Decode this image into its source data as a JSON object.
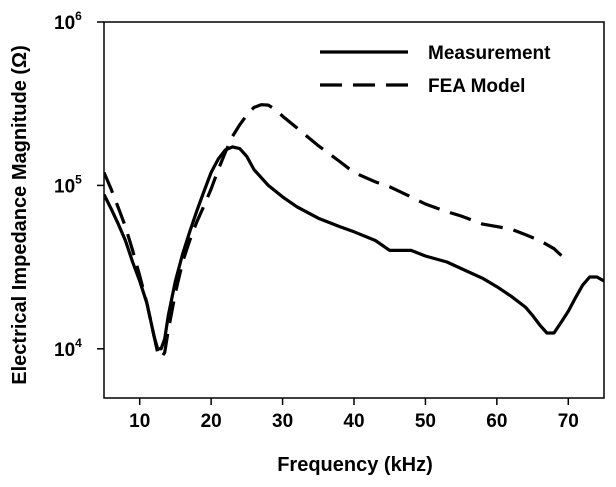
{
  "chart_data": {
    "type": "line",
    "title": "",
    "xlabel": "Frequency (kHz)",
    "ylabel": "Electrical Impedance Magnitude (Ω)",
    "x_scale": "linear",
    "y_scale": "log",
    "xlim": [
      5,
      75
    ],
    "ylim": [
      5000,
      1000000
    ],
    "x_ticks": [
      10,
      20,
      30,
      40,
      50,
      60,
      70
    ],
    "x_tick_labels": [
      "10",
      "20",
      "30",
      "40",
      "50",
      "60",
      "70"
    ],
    "y_ticks": [
      {
        "value": 10000,
        "base": "10",
        "exp": "4"
      },
      {
        "value": 100000,
        "base": "10",
        "exp": "5"
      },
      {
        "value": 1000000,
        "base": "10",
        "exp": "6"
      }
    ],
    "legend_position": "top-right",
    "grid": false,
    "series": [
      {
        "name": "Measurement",
        "style": "solid",
        "color": "#000000",
        "x": [
          5,
          6,
          7,
          8,
          9,
          10,
          11,
          12,
          12.5,
          13,
          13.5,
          14,
          15,
          16,
          17,
          18,
          19,
          20,
          21,
          22,
          23,
          24,
          25,
          26,
          28,
          30,
          32,
          35,
          38,
          40,
          43,
          45,
          48,
          50,
          53,
          55,
          58,
          60,
          62,
          64,
          65,
          66,
          67,
          68,
          69,
          70,
          71,
          72,
          73,
          74,
          75
        ],
        "y": [
          88000,
          72000,
          58000,
          46000,
          34000,
          26000,
          19000,
          12000,
          10000,
          10000,
          11500,
          16000,
          26000,
          38000,
          52000,
          70000,
          92000,
          120000,
          145000,
          165000,
          172000,
          168000,
          150000,
          125000,
          100000,
          85000,
          74000,
          63000,
          56000,
          52000,
          46000,
          40000,
          40000,
          37000,
          34000,
          31000,
          27000,
          24000,
          21000,
          18000,
          16000,
          14000,
          12500,
          12500,
          14500,
          17000,
          20500,
          24500,
          27500,
          27500,
          26000
        ]
      },
      {
        "name": "FEA Model",
        "style": "dashed",
        "color": "#000000",
        "x": [
          5,
          6,
          7,
          8,
          9,
          10,
          11,
          12,
          12.5,
          13,
          13.5,
          14,
          15,
          16,
          17,
          18,
          19,
          20,
          21,
          22,
          23,
          24,
          25,
          26,
          27,
          28,
          29,
          30,
          32,
          35,
          38,
          40,
          43,
          45,
          48,
          50,
          53,
          55,
          58,
          60,
          62,
          64,
          66,
          68,
          70
        ],
        "y": [
          120000,
          95000,
          73000,
          56000,
          40000,
          28000,
          19000,
          12000,
          9500,
          8800,
          9500,
          13000,
          22000,
          34000,
          46000,
          60000,
          75000,
          95000,
          125000,
          160000,
          200000,
          235000,
          270000,
          300000,
          312000,
          310000,
          292000,
          265000,
          225000,
          175000,
          140000,
          120000,
          105000,
          98000,
          85000,
          77000,
          69000,
          65000,
          58000,
          56000,
          54000,
          50000,
          46000,
          41000,
          34000
        ]
      }
    ]
  }
}
